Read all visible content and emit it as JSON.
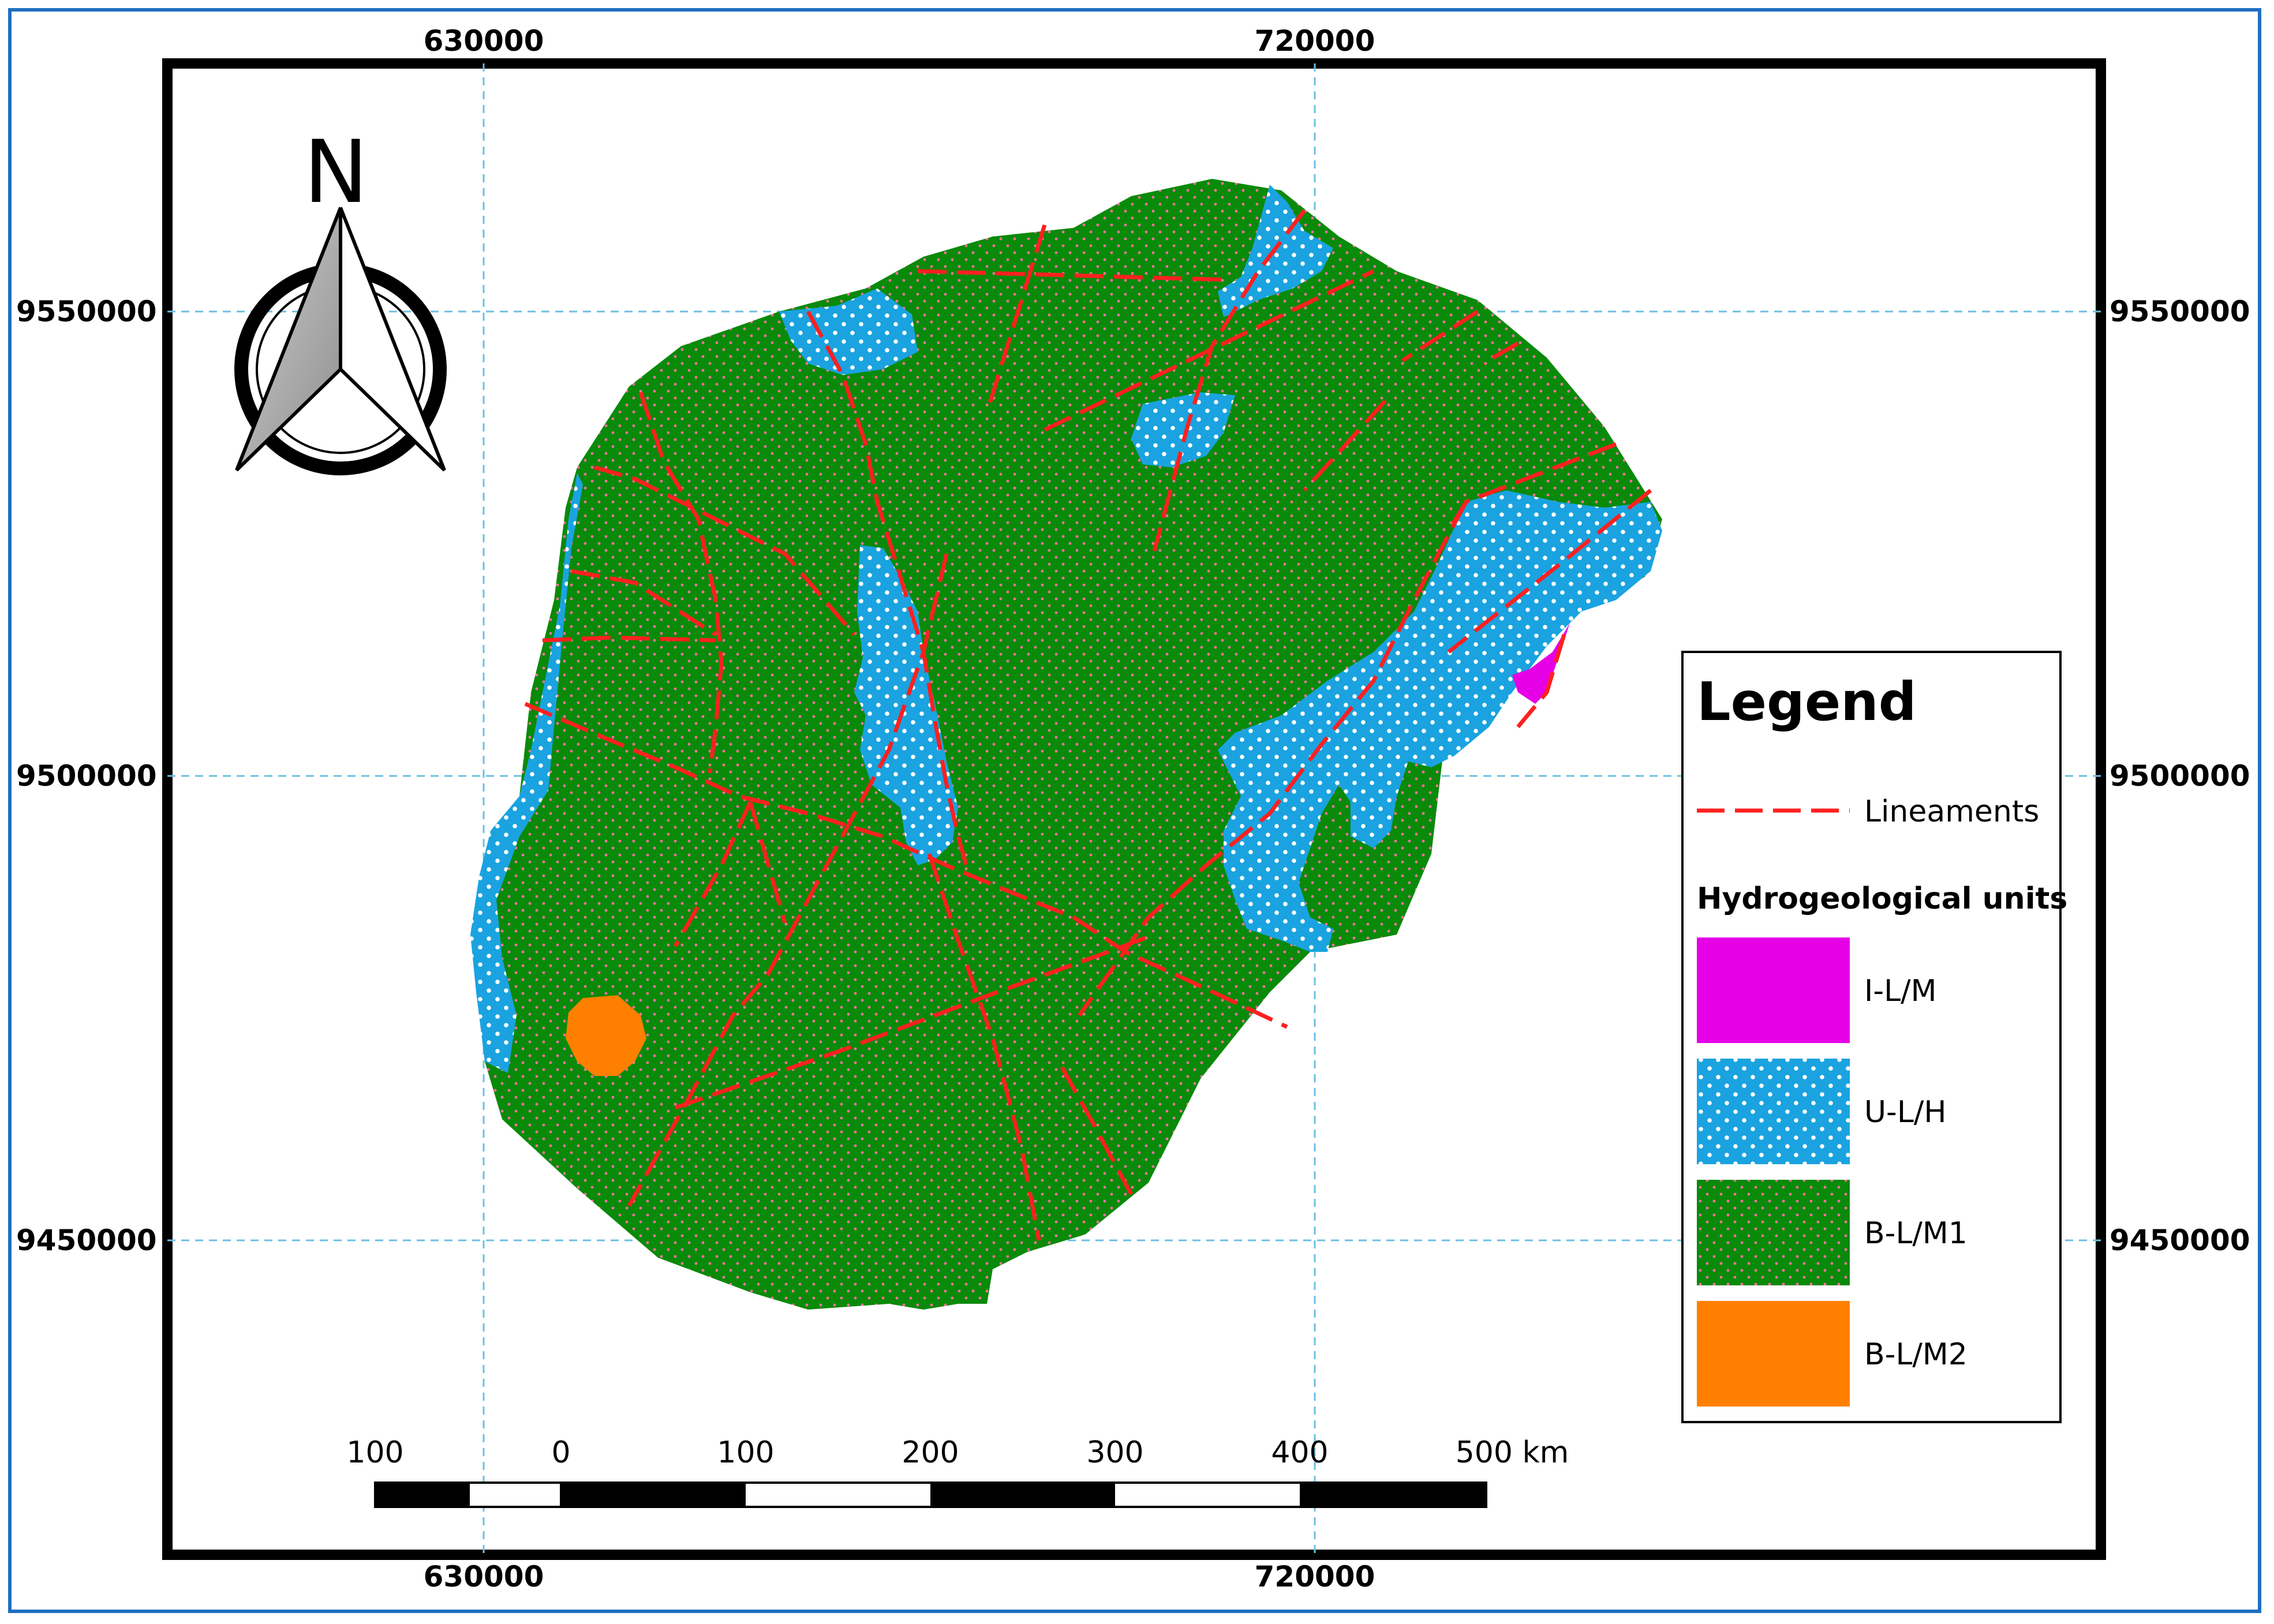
{
  "map": {
    "coords": {
      "top": [
        "630000",
        "720000"
      ],
      "bottom": [
        "630000",
        "720000"
      ],
      "left": [
        "9550000",
        "9500000",
        "9450000"
      ],
      "right": [
        "9550000",
        "9500000",
        "9450000"
      ]
    },
    "north_label": "N",
    "scale_bar": {
      "labels": [
        "100",
        "0",
        "100",
        "200",
        "300",
        "400",
        "500 km"
      ]
    },
    "legend": {
      "title": "Legend",
      "lineaments_label": "Lineaments",
      "units_heading": "Hydrogeological units",
      "units": [
        {
          "label": "I-L/M",
          "color": "#e600e6"
        },
        {
          "label": "U-L/H",
          "color": "#1aa3e0"
        },
        {
          "label": "B-L/M1",
          "color": "#0a8a0a"
        },
        {
          "label": "B-L/M2",
          "color": "#ff8000"
        }
      ]
    },
    "colors": {
      "frame_border": "#1f6fbf",
      "grid": "#6cc0e0",
      "lineament": "#ff2020"
    }
  }
}
